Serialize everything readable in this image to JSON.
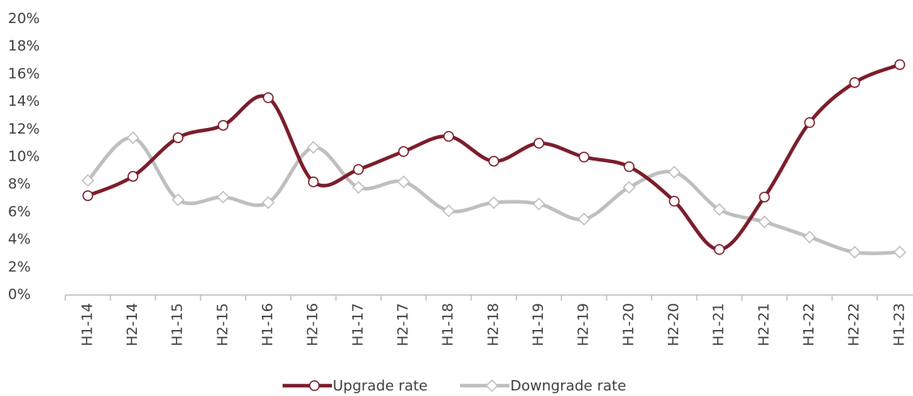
{
  "chart_data": {
    "type": "line",
    "categories": [
      "H1-14",
      "H2-14",
      "H1-15",
      "H2-15",
      "H1-16",
      "H2-16",
      "H1-17",
      "H2-17",
      "H1-18",
      "H2-18",
      "H1-19",
      "H2-19",
      "H1-20",
      "H2-20",
      "H1-21",
      "H2-21",
      "H1-22",
      "H2-22",
      "H1-23"
    ],
    "series": [
      {
        "name": "Upgrade rate",
        "color": "#7b1e2b",
        "marker": "circle",
        "values": [
          7.2,
          8.6,
          11.4,
          12.3,
          14.3,
          8.2,
          9.1,
          10.4,
          11.5,
          9.7,
          11.0,
          10.0,
          9.3,
          6.8,
          3.3,
          7.1,
          12.5,
          15.4,
          16.7
        ]
      },
      {
        "name": "Downgrade rate",
        "color": "#bfbfbf",
        "marker": "diamond",
        "values": [
          8.3,
          11.4,
          6.9,
          7.1,
          6.7,
          10.7,
          7.8,
          8.2,
          6.1,
          6.7,
          6.6,
          5.5,
          7.8,
          8.9,
          6.2,
          5.3,
          4.2,
          3.1,
          3.1
        ]
      }
    ],
    "ylim": [
      0,
      20
    ],
    "yticks": [
      {
        "value": 0,
        "label": "0%"
      },
      {
        "value": 2,
        "label": "2%"
      },
      {
        "value": 4,
        "label": "4%"
      },
      {
        "value": 6,
        "label": "6%"
      },
      {
        "value": 8,
        "label": "8%"
      },
      {
        "value": 10,
        "label": "10%"
      },
      {
        "value": 12,
        "label": "12%"
      },
      {
        "value": 14,
        "label": "14%"
      },
      {
        "value": 16,
        "label": "16%"
      },
      {
        "value": 18,
        "label": "18%"
      },
      {
        "value": 20,
        "label": "20%"
      }
    ],
    "grid": false,
    "legend": "bottom"
  }
}
